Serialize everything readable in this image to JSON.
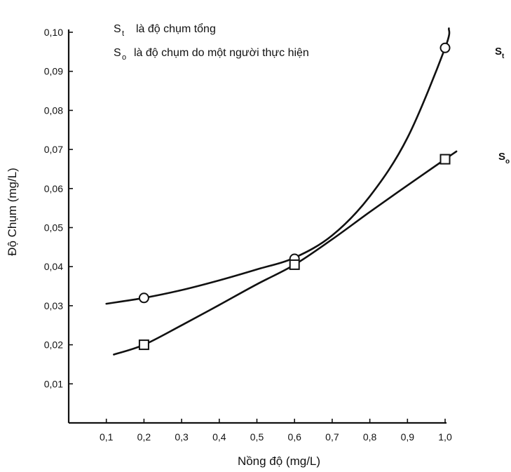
{
  "chart_data": {
    "type": "line",
    "title": "",
    "xlabel": "Nồng độ (mg/L)",
    "ylabel": "Độ Chụm (mg/L)",
    "xlim": [
      0,
      1.0
    ],
    "ylim": [
      0,
      0.1
    ],
    "x_ticks": [
      "0,1",
      "0,2",
      "0,3",
      "0,4",
      "0,5",
      "0,6",
      "0,7",
      "0,8",
      "0,9",
      "1,0"
    ],
    "y_ticks": [
      "0,01",
      "0,02",
      "0,03",
      "0,04",
      "0,05",
      "0,06",
      "0,07",
      "0,08",
      "0,09",
      "0,10"
    ],
    "grid": false,
    "legend_position": "top-left",
    "legend": [
      {
        "symbol": "S",
        "sub": "t",
        "text": "là độ chụm tổng"
      },
      {
        "symbol": "S",
        "sub": "o",
        "text": "là độ chụm do một người thực hiện"
      }
    ],
    "series": [
      {
        "name": "St",
        "label_main": "S",
        "label_sub": "t",
        "marker": "circle",
        "x": [
          0.2,
          0.6,
          1.0
        ],
        "values": [
          0.032,
          0.042,
          0.096
        ],
        "curve_x": [
          0.1,
          0.2,
          0.3,
          0.4,
          0.5,
          0.6,
          0.7,
          0.8,
          0.9,
          1.0,
          1.01
        ],
        "curve_y": [
          0.0305,
          0.032,
          0.034,
          0.0365,
          0.0393,
          0.0423,
          0.048,
          0.058,
          0.073,
          0.096,
          0.101
        ]
      },
      {
        "name": "So",
        "label_main": "S",
        "label_sub": "o",
        "marker": "square",
        "x": [
          0.2,
          0.6,
          1.0
        ],
        "values": [
          0.02,
          0.0405,
          0.0675
        ],
        "curve_x": [
          0.12,
          0.2,
          0.3,
          0.4,
          0.5,
          0.6,
          0.7,
          0.8,
          0.9,
          1.0,
          1.03
        ],
        "curve_y": [
          0.0175,
          0.02,
          0.025,
          0.0302,
          0.0355,
          0.0405,
          0.047,
          0.054,
          0.0608,
          0.0675,
          0.0695
        ]
      }
    ]
  }
}
